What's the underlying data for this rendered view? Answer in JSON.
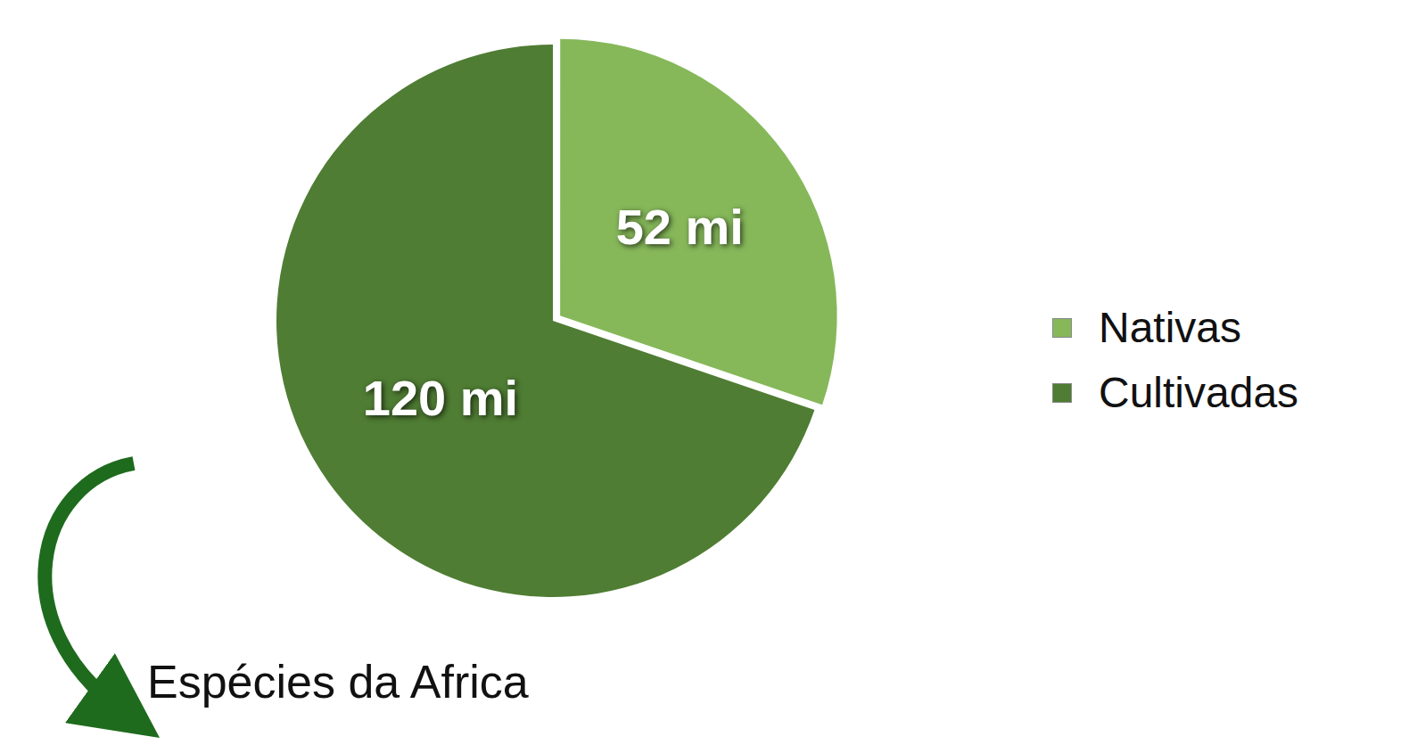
{
  "chart_data": {
    "type": "pie",
    "categories": [
      "Nativas",
      "Cultivadas"
    ],
    "values": [
      52,
      120
    ],
    "value_labels": [
      "52 mi",
      "120 mi"
    ],
    "colors": [
      "#86b85a",
      "#4f7d33"
    ],
    "data_labels": true,
    "legend": "right",
    "annotation": "Espécies da Africa"
  }
}
